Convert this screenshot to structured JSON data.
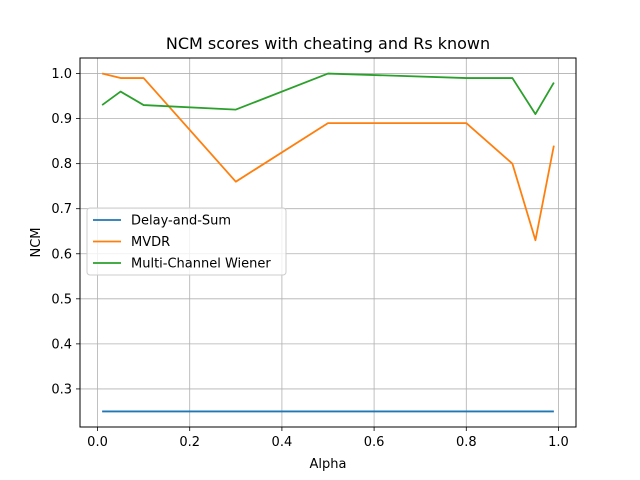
{
  "chart_data": {
    "type": "line",
    "title": "NCM scores with cheating and Rs known",
    "xlabel": "Alpha",
    "ylabel": "NCM",
    "xlim": [
      -0.038,
      1.038
    ],
    "ylim": [
      0.2155,
      1.0345
    ],
    "xticks": [
      0.0,
      0.2,
      0.4,
      0.6,
      0.8,
      1.0
    ],
    "xtick_labels": [
      "0.0",
      "0.2",
      "0.4",
      "0.6",
      "0.8",
      "1.0"
    ],
    "yticks": [
      0.3,
      0.4,
      0.5,
      0.6,
      0.7,
      0.8,
      0.9,
      1.0
    ],
    "ytick_labels": [
      "0.3",
      "0.4",
      "0.5",
      "0.6",
      "0.7",
      "0.8",
      "0.9",
      "1.0"
    ],
    "grid": true,
    "legend_position": "center-left",
    "series": [
      {
        "name": "Delay-and-Sum",
        "color": "#1f77b4",
        "x": [
          0.01,
          0.05,
          0.1,
          0.3,
          0.5,
          0.8,
          0.9,
          0.95,
          0.99
        ],
        "y": [
          0.25,
          0.25,
          0.25,
          0.25,
          0.25,
          0.25,
          0.25,
          0.25,
          0.25
        ]
      },
      {
        "name": "MVDR",
        "color": "#ff7f0e",
        "x": [
          0.01,
          0.05,
          0.1,
          0.3,
          0.5,
          0.8,
          0.9,
          0.95,
          0.99
        ],
        "y": [
          1.0,
          0.99,
          0.99,
          0.76,
          0.89,
          0.89,
          0.8,
          0.63,
          0.84
        ]
      },
      {
        "name": "Multi-Channel Wiener",
        "color": "#2ca02c",
        "x": [
          0.01,
          0.05,
          0.1,
          0.3,
          0.5,
          0.8,
          0.9,
          0.95,
          0.99
        ],
        "y": [
          0.93,
          0.96,
          0.93,
          0.92,
          1.0,
          0.99,
          0.99,
          0.91,
          0.98
        ]
      }
    ]
  }
}
